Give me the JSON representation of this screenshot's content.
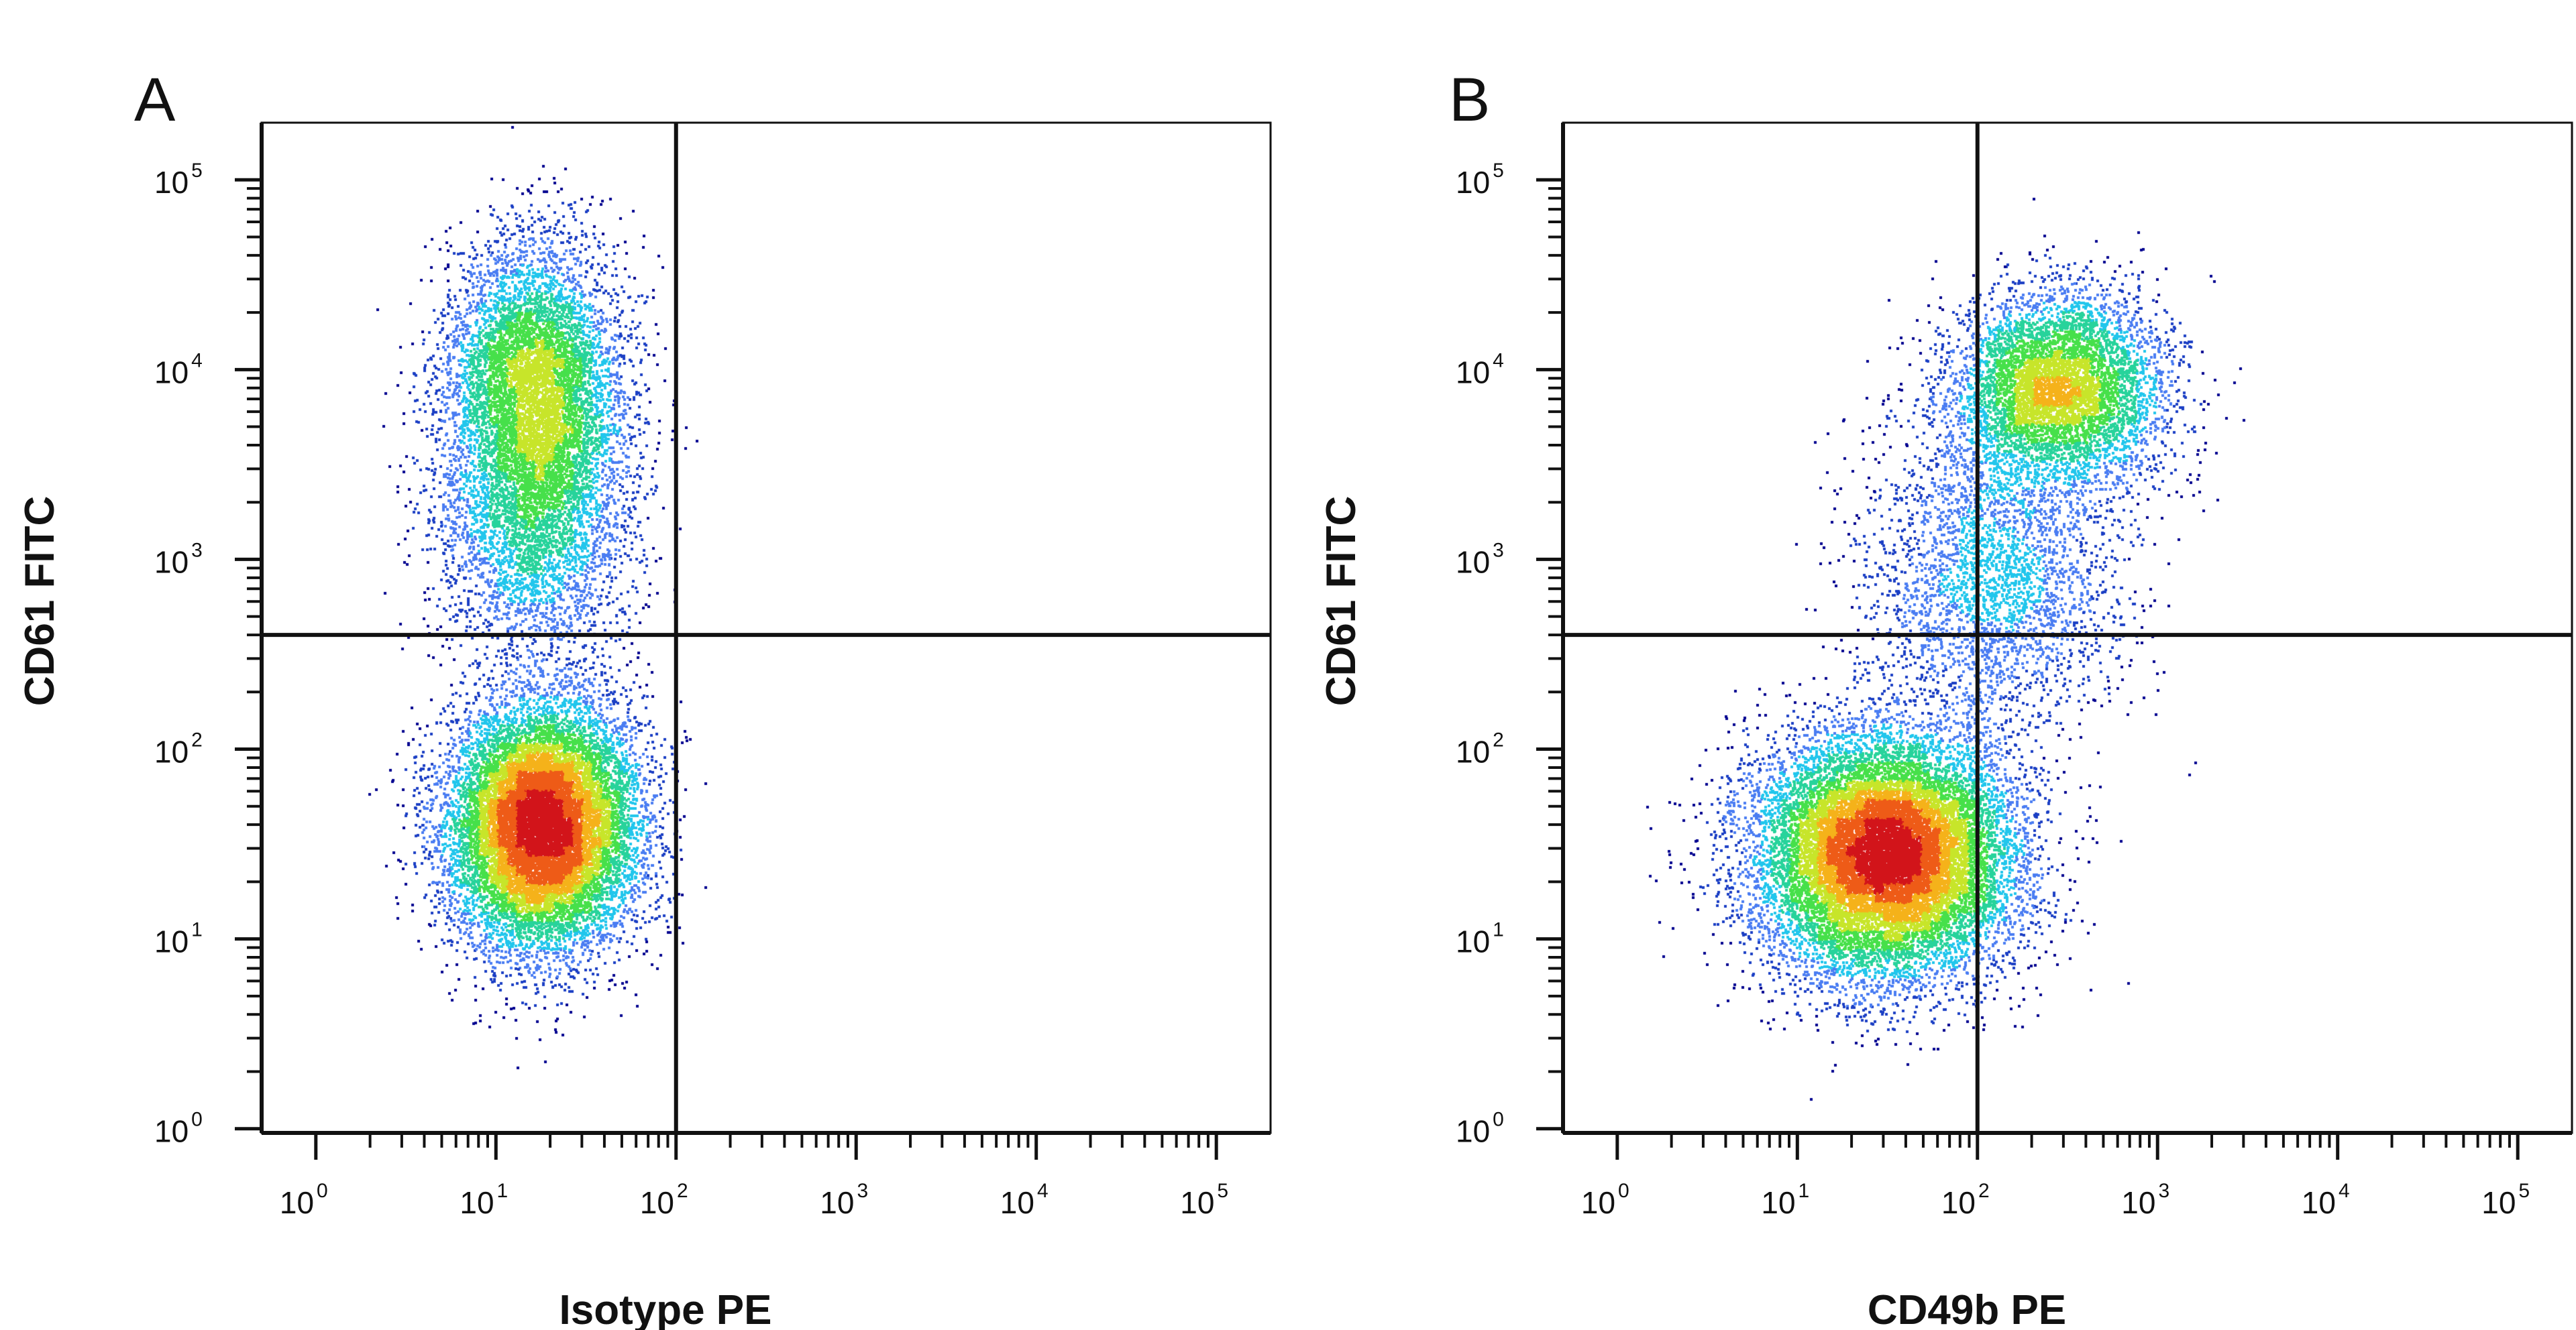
{
  "chart_data": [
    {
      "type": "scatter",
      "panel_label": "A",
      "xlabel": "Isotype PE",
      "ylabel": "CD61 FITC",
      "x_scale": "log",
      "y_scale": "log",
      "xlim": [
        0.5,
        200000
      ],
      "ylim": [
        0.95,
        200000
      ],
      "x_ticks": [
        {
          "base": "10",
          "exp": "0",
          "value": 1
        },
        {
          "base": "10",
          "exp": "1",
          "value": 10
        },
        {
          "base": "10",
          "exp": "2",
          "value": 100
        },
        {
          "base": "10",
          "exp": "3",
          "value": 1000
        },
        {
          "base": "10",
          "exp": "4",
          "value": 10000
        },
        {
          "base": "10",
          "exp": "5",
          "value": 100000
        }
      ],
      "y_ticks": [
        {
          "base": "10",
          "exp": "0",
          "value": 1
        },
        {
          "base": "10",
          "exp": "1",
          "value": 10
        },
        {
          "base": "10",
          "exp": "2",
          "value": 100
        },
        {
          "base": "10",
          "exp": "3",
          "value": 1000
        },
        {
          "base": "10",
          "exp": "4",
          "value": 10000
        },
        {
          "base": "10",
          "exp": "5",
          "value": 100000
        }
      ],
      "quadrant_gate": {
        "x": 100,
        "y": 400
      },
      "populations": [
        {
          "center": [
            18,
            40
          ],
          "spread_decades": [
            0.26,
            0.32
          ],
          "events": 14000
        },
        {
          "center": [
            16,
            8000
          ],
          "spread_decades": [
            0.24,
            0.38
          ],
          "events": 7000
        },
        {
          "center": [
            16,
            1500
          ],
          "spread_decades": [
            0.26,
            0.35
          ],
          "events": 3000
        }
      ],
      "grid": false,
      "colormap": [
        "#00008f",
        "#1b3fc4",
        "#4a7df2",
        "#21c6ec",
        "#27d39b",
        "#46e04a",
        "#c7e52a",
        "#f5b21a",
        "#ee5b17",
        "#d2141a"
      ]
    },
    {
      "type": "scatter",
      "panel_label": "B",
      "xlabel": "CD49b PE",
      "ylabel": "CD61 FITC",
      "x_scale": "log",
      "y_scale": "log",
      "xlim": [
        0.5,
        200000
      ],
      "ylim": [
        0.95,
        200000
      ],
      "x_ticks": [
        {
          "base": "10",
          "exp": "0",
          "value": 1
        },
        {
          "base": "10",
          "exp": "1",
          "value": 10
        },
        {
          "base": "10",
          "exp": "2",
          "value": 100
        },
        {
          "base": "10",
          "exp": "3",
          "value": 1000
        },
        {
          "base": "10",
          "exp": "4",
          "value": 10000
        },
        {
          "base": "10",
          "exp": "5",
          "value": 100000
        }
      ],
      "y_ticks": [
        {
          "base": "10",
          "exp": "0",
          "value": 1
        },
        {
          "base": "10",
          "exp": "1",
          "value": 10
        },
        {
          "base": "10",
          "exp": "2",
          "value": 100
        },
        {
          "base": "10",
          "exp": "3",
          "value": 1000
        },
        {
          "base": "10",
          "exp": "4",
          "value": 10000
        },
        {
          "base": "10",
          "exp": "5",
          "value": 100000
        }
      ],
      "quadrant_gate": {
        "x": 100,
        "y": 400
      },
      "populations": [
        {
          "center": [
            30,
            28
          ],
          "spread_decades": [
            0.35,
            0.32
          ],
          "events": 16000
        },
        {
          "center": [
            280,
            8000
          ],
          "spread_decades": [
            0.28,
            0.25
          ],
          "events": 6000
        },
        {
          "center": [
            120,
            800
          ],
          "spread_decades": [
            0.35,
            0.4
          ],
          "events": 3000
        }
      ],
      "grid": false,
      "colormap": [
        "#00008f",
        "#1b3fc4",
        "#4a7df2",
        "#21c6ec",
        "#27d39b",
        "#46e04a",
        "#c7e52a",
        "#f5b21a",
        "#ee5b17",
        "#d2141a"
      ]
    }
  ]
}
